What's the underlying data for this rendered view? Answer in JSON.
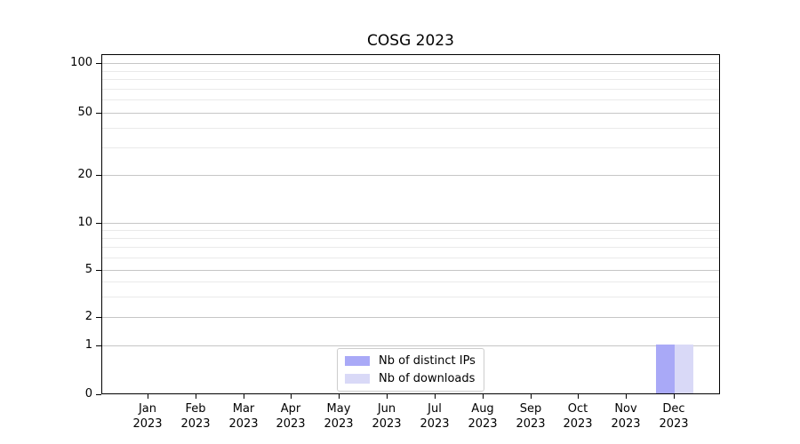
{
  "figure": {
    "background": "#ffffff"
  },
  "chart_data": {
    "type": "bar",
    "title": "COSG 2023",
    "categories": [
      "Jan\n2023",
      "Feb\n2023",
      "Mar\n2023",
      "Apr\n2023",
      "May\n2023",
      "Jun\n2023",
      "Jul\n2023",
      "Aug\n2023",
      "Sep\n2023",
      "Oct\n2023",
      "Nov\n2023",
      "Dec\n2023"
    ],
    "series": [
      {
        "name": "Nb of distinct IPs",
        "color": "#a9a9f7",
        "values": [
          0,
          0,
          0,
          0,
          0,
          0,
          0,
          0,
          0,
          0,
          0,
          1
        ]
      },
      {
        "name": "Nb of downloads",
        "color": "#d9d9f7",
        "values": [
          0,
          0,
          0,
          0,
          0,
          0,
          0,
          0,
          0,
          0,
          0,
          1
        ]
      }
    ],
    "xlabel": "",
    "ylabel": "",
    "y_axis": {
      "scale": "symlog",
      "tick_values": [
        0,
        1,
        2,
        5,
        10,
        20,
        50,
        100
      ],
      "minor_tick_values": [
        3,
        4,
        6,
        7,
        8,
        9,
        30,
        40,
        60,
        70,
        80,
        90
      ],
      "ylim": [
        0,
        114
      ]
    },
    "grid": {
      "show": true,
      "major_color": "#c6c6c6",
      "minor_color": "#eaeaea"
    },
    "legend": {
      "position": "lower center",
      "border_color": "#cccccc",
      "background": "#ffffff"
    }
  }
}
